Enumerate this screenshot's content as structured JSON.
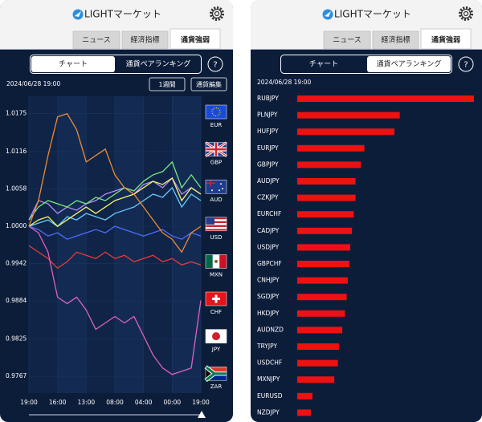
{
  "screens": [
    {
      "header": {
        "title": "LIGHTマーケット"
      },
      "tabs": [
        "ニュース",
        "経済指標",
        "通貨強弱"
      ],
      "active_tab": 2,
      "segments": [
        "チャート",
        "通貨ペアランキング"
      ],
      "active_segment": 0,
      "help": "?",
      "timestamp": "2024/06/28 19:00",
      "buttons": [
        "1週間",
        "通貨編集"
      ]
    },
    {
      "header": {
        "title": "LIGHTマーケット"
      },
      "tabs": [
        "ニュース",
        "経済指標",
        "通貨強弱"
      ],
      "active_tab": 2,
      "segments": [
        "チャート",
        "通貨ペアランキング"
      ],
      "active_segment": 1,
      "help": "?",
      "timestamp": "2024/06/28 19:00"
    }
  ],
  "chart_data": [
    {
      "type": "line",
      "x": [
        0,
        1,
        2,
        3,
        4,
        5,
        6,
        7,
        8,
        9,
        10,
        11,
        12,
        13,
        14,
        15,
        16,
        17,
        18
      ],
      "xlim": [
        0,
        18
      ],
      "xticks": [
        {
          "value": 0,
          "label": "19:00"
        },
        {
          "value": 3,
          "label": "16:00"
        },
        {
          "value": 6,
          "label": "13:00"
        },
        {
          "value": 9,
          "label": "08:00"
        },
        {
          "value": 12,
          "label": "04:00"
        },
        {
          "value": 15,
          "label": "00:00"
        },
        {
          "value": 18,
          "label": "19:00"
        }
      ],
      "ylim": [
        0.9741,
        1.0202
      ],
      "yticks": [
        0.9767,
        0.9825,
        0.9884,
        0.9942,
        {
          "value": 1,
          "label": "1.0000"
        },
        1.0058,
        1.0116,
        1.0175
      ],
      "grid": true,
      "series": [
        {
          "name": "EUR",
          "color": "#66ccff",
          "values": [
            1.0,
            1.0005,
            1.001,
            1.0,
            1.0015,
            1.001,
            1.002,
            1.0015,
            1.001,
            1.002,
            1.0025,
            1.003,
            1.004,
            1.005,
            1.0045,
            1.006,
            1.003,
            1.005,
            1.004
          ]
        },
        {
          "name": "GBP",
          "color": "#b58cff",
          "values": [
            1.001,
            1.004,
            1.0035,
            1.002,
            1.003,
            1.0025,
            1.0035,
            1.004,
            1.005,
            1.0055,
            1.006,
            1.005,
            1.0065,
            1.007,
            1.006,
            1.0075,
            1.005,
            1.006,
            1.005
          ]
        },
        {
          "name": "AUD",
          "color": "#7de87d",
          "values": [
            1.001,
            1.003,
            1.004,
            1.0035,
            1.003,
            1.004,
            1.0035,
            1.0045,
            1.004,
            1.005,
            1.006,
            1.0055,
            1.007,
            1.008,
            1.0085,
            1.01,
            1.006,
            1.008,
            1.006
          ]
        },
        {
          "name": "USD",
          "color": "#f5f56a",
          "values": [
            1.0,
            1.001,
            1.0015,
            1.0,
            1.001,
            1.002,
            1.003,
            1.002,
            1.003,
            1.004,
            1.0045,
            1.005,
            1.006,
            1.007,
            1.0065,
            1.0075,
            1.004,
            1.006,
            1.005
          ]
        },
        {
          "name": "MXN",
          "color": "#e83a3a",
          "values": [
            0.997,
            0.996,
            0.995,
            0.9935,
            0.9945,
            0.996,
            0.9955,
            0.995,
            0.996,
            0.995,
            0.9955,
            0.9945,
            0.995,
            0.9955,
            0.9945,
            0.995,
            0.994,
            0.9945,
            0.994
          ]
        },
        {
          "name": "CHF",
          "color": "#4f6bff",
          "values": [
            1.0,
            0.9995,
            0.9985,
            0.999,
            0.998,
            0.9985,
            0.999,
            0.9995,
            0.999,
            1.0,
            0.9995,
            0.999,
            0.9985,
            0.999,
            0.9995,
            0.9985,
            0.998,
            0.999,
            0.9985
          ]
        },
        {
          "name": "JPY",
          "color": "#e060c0",
          "values": [
            1.0,
            0.999,
            0.996,
            0.989,
            0.988,
            0.989,
            0.987,
            0.984,
            0.985,
            0.986,
            0.985,
            0.986,
            0.983,
            0.98,
            0.978,
            0.977,
            0.9775,
            0.978,
            0.9885
          ]
        },
        {
          "name": "ZAR",
          "color": "#f08a30",
          "values": [
            1.0,
            1.004,
            1.011,
            1.017,
            1.0175,
            1.015,
            1.01,
            1.011,
            1.012,
            1.008,
            1.006,
            1.005,
            1.003,
            1.001,
            0.999,
            0.998,
            0.996,
            0.999,
            1.0
          ]
        }
      ]
    },
    {
      "type": "bar",
      "orientation": "horizontal",
      "categories": [
        "RUBJPY",
        "PLNJPY",
        "HUFJPY",
        "EURJPY",
        "GBPJPY",
        "AUDJPY",
        "CZKJPY",
        "EURCHF",
        "CADJPY",
        "USDJPY",
        "GBPCHF",
        "CNHJPY",
        "SGDJPY",
        "HKDJPY",
        "AUDNZD",
        "TRYJPY",
        "USDCHF",
        "MXNJPY",
        "EURUSD",
        "NZDJPY"
      ],
      "values": [
        100,
        58,
        55,
        38,
        36,
        33,
        33,
        32,
        31,
        30,
        29.5,
        28.6,
        28,
        27,
        25.5,
        23.6,
        23,
        21,
        8.6,
        7.7
      ],
      "xlim": [
        0,
        100
      ],
      "color": "#ee1111"
    }
  ]
}
